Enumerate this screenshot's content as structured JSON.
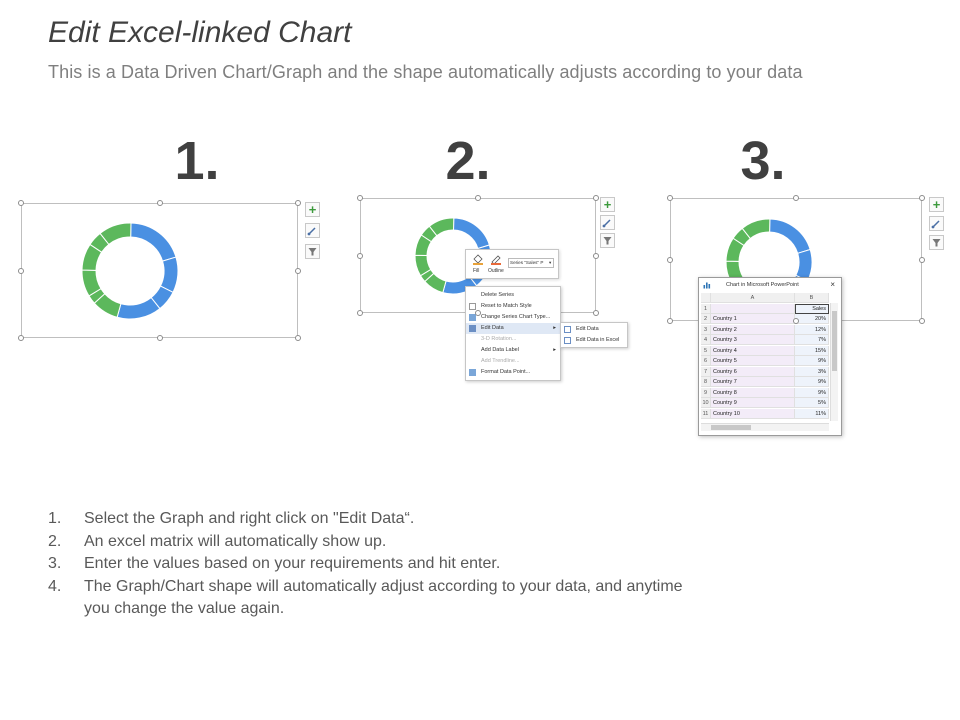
{
  "header": {
    "title": "Edit Excel-linked Chart",
    "subtitle": "This is a Data Driven Chart/Graph and the shape automatically adjusts according to your data"
  },
  "steps": [
    {
      "number": "1."
    },
    {
      "number": "2."
    },
    {
      "number": "3."
    }
  ],
  "colors": {
    "series_blue": "#4a90e2",
    "series_green": "#5cb85c"
  },
  "icons": {
    "add": "plus-icon",
    "style": "brush-icon",
    "filter": "filter-icon"
  },
  "context_menu": {
    "toolbar": {
      "fill": "Fill",
      "outline": "Outline",
      "series_dropdown": "Series \"Sales\" P"
    },
    "items": [
      {
        "label": "Delete Series",
        "disabled": false
      },
      {
        "label": "Reset to Match Style",
        "disabled": false
      },
      {
        "label": "Change Series Chart Type...",
        "disabled": false
      },
      {
        "label": "Edit Data",
        "disabled": false,
        "submenu": true
      },
      {
        "label": "3-D Rotation...",
        "disabled": true
      },
      {
        "label": "Add Data Label",
        "disabled": false,
        "submenu": true
      },
      {
        "label": "Add Trendline...",
        "disabled": true
      },
      {
        "label": "Format Data Point...",
        "disabled": false
      }
    ],
    "submenu": [
      {
        "label": "Edit Data"
      },
      {
        "label": "Edit Data in Excel"
      }
    ]
  },
  "excel": {
    "window_title": "Chart in Microsoft PowerPoint",
    "columns": [
      "A",
      "B"
    ],
    "header_row": {
      "row": "1",
      "a": "",
      "b": "Sales"
    },
    "rows": [
      {
        "row": "2",
        "a": "Country 1",
        "b": "20%"
      },
      {
        "row": "3",
        "a": "Country 2",
        "b": "12%"
      },
      {
        "row": "4",
        "a": "Country 3",
        "b": "7%"
      },
      {
        "row": "5",
        "a": "Country 4",
        "b": "15%"
      },
      {
        "row": "6",
        "a": "Country 5",
        "b": "9%"
      },
      {
        "row": "7",
        "a": "Country 6",
        "b": "3%"
      },
      {
        "row": "8",
        "a": "Country 7",
        "b": "9%"
      },
      {
        "row": "9",
        "a": "Country 8",
        "b": "9%"
      },
      {
        "row": "10",
        "a": "Country 9",
        "b": "5%"
      },
      {
        "row": "11",
        "a": "Country 10",
        "b": "11%"
      }
    ]
  },
  "chart_data": {
    "type": "pie",
    "categories": [
      "Country 1",
      "Country 2",
      "Country 3",
      "Country 4",
      "Country 5",
      "Country 6",
      "Country 7",
      "Country 8",
      "Country 9",
      "Country 10"
    ],
    "values": [
      20,
      12,
      7,
      15,
      9,
      3,
      9,
      9,
      5,
      11
    ]
  },
  "instructions": [
    {
      "n": "1.",
      "text": "Select the Graph and right click on \"Edit Data“."
    },
    {
      "n": "2.",
      "text": "An excel matrix will automatically show up."
    },
    {
      "n": "3.",
      "text": "Enter the values based on your requirements and hit enter."
    },
    {
      "n": "4.",
      "text": "The Graph/Chart shape will automatically adjust according to your data, and anytime you change the value again."
    }
  ]
}
